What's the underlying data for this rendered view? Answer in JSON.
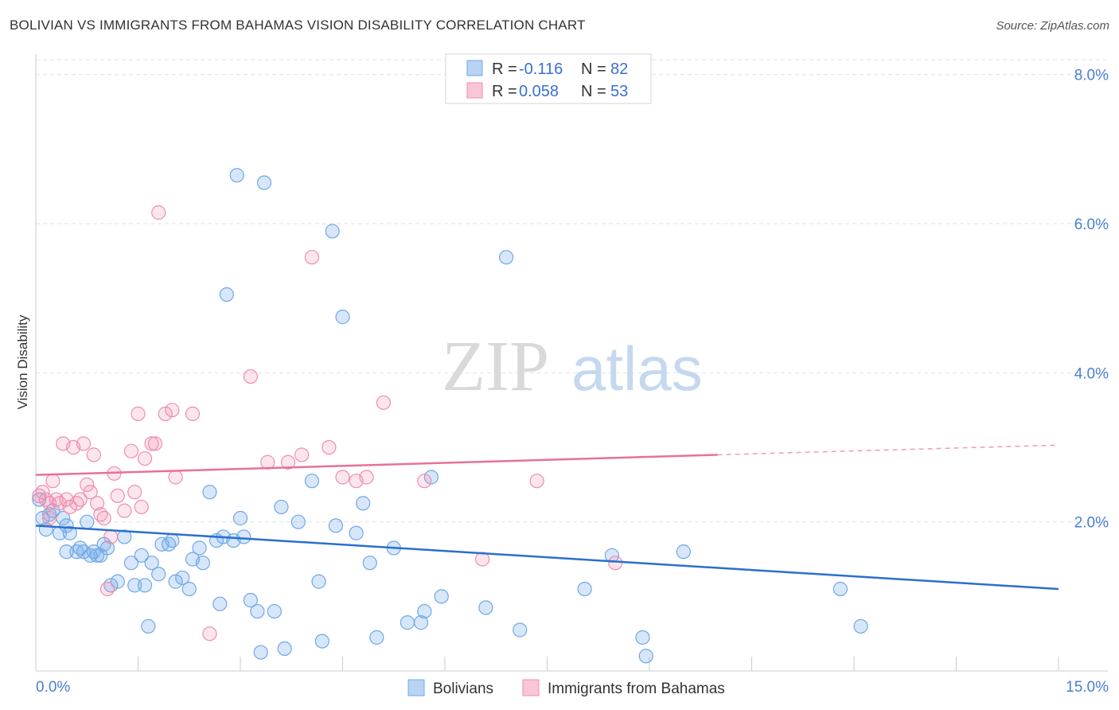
{
  "title": "BOLIVIAN VS IMMIGRANTS FROM BAHAMAS VISION DISABILITY CORRELATION CHART",
  "source": "Source: ZipAtlas.com",
  "watermark": {
    "zip": "ZIP",
    "atlas": "atlas"
  },
  "legend_top": [
    {
      "r_label": "R =",
      "r_value": "-0.116",
      "n_label": "N =",
      "n_value": "82"
    },
    {
      "r_label": "R =",
      "r_value": "0.058",
      "n_label": "N =",
      "n_value": "53"
    }
  ],
  "chart_data": {
    "type": "scatter",
    "ylabel": "Vision Disability",
    "xlabel": "",
    "xlim": [
      0,
      15
    ],
    "ylim": [
      0,
      8.2
    ],
    "x_tick_labels": [
      "0.0%",
      "15.0%"
    ],
    "y_ticks": [
      2,
      4,
      6,
      8
    ],
    "y_tick_labels": [
      "2.0%",
      "4.0%",
      "6.0%",
      "8.0%"
    ],
    "grid": true,
    "colors": {
      "Bolivians": "#6fa8e8",
      "Immigrants from Bahamas": "#f08cae"
    },
    "line_colors": {
      "Bolivians": "#2a6fd0",
      "Immigrants from Bahamas": "#e8709a"
    },
    "series": [
      {
        "name": "Bolivians",
        "trend": {
          "x": [
            0,
            15
          ],
          "y": [
            1.95,
            1.1
          ]
        },
        "points": [
          [
            0.05,
            2.3
          ],
          [
            0.1,
            2.05
          ],
          [
            0.15,
            1.9
          ],
          [
            0.2,
            2.1
          ],
          [
            0.25,
            2.15
          ],
          [
            0.35,
            1.85
          ],
          [
            0.4,
            2.05
          ],
          [
            0.45,
            1.95
          ],
          [
            0.5,
            1.85
          ],
          [
            0.6,
            1.6
          ],
          [
            0.65,
            1.65
          ],
          [
            0.7,
            1.6
          ],
          [
            0.75,
            2.0
          ],
          [
            0.8,
            1.55
          ],
          [
            0.85,
            1.6
          ],
          [
            0.9,
            1.55
          ],
          [
            0.95,
            1.55
          ],
          [
            1.0,
            1.7
          ],
          [
            1.05,
            1.65
          ],
          [
            1.1,
            1.15
          ],
          [
            1.2,
            1.2
          ],
          [
            1.3,
            1.8
          ],
          [
            1.4,
            1.45
          ],
          [
            1.45,
            1.15
          ],
          [
            1.55,
            1.55
          ],
          [
            1.6,
            1.15
          ],
          [
            1.65,
            0.6
          ],
          [
            1.7,
            1.45
          ],
          [
            1.8,
            1.3
          ],
          [
            1.85,
            1.7
          ],
          [
            1.95,
            1.7
          ],
          [
            2.0,
            1.75
          ],
          [
            2.05,
            1.2
          ],
          [
            2.15,
            1.25
          ],
          [
            2.25,
            1.1
          ],
          [
            2.3,
            1.5
          ],
          [
            2.4,
            1.65
          ],
          [
            2.45,
            1.45
          ],
          [
            2.55,
            2.4
          ],
          [
            2.65,
            1.75
          ],
          [
            2.7,
            0.9
          ],
          [
            2.75,
            1.8
          ],
          [
            2.8,
            5.05
          ],
          [
            2.9,
            1.75
          ],
          [
            2.95,
            6.65
          ],
          [
            3.0,
            2.05
          ],
          [
            3.05,
            1.8
          ],
          [
            3.15,
            0.95
          ],
          [
            3.25,
            0.8
          ],
          [
            3.3,
            0.25
          ],
          [
            3.35,
            6.55
          ],
          [
            3.5,
            0.8
          ],
          [
            3.6,
            2.2
          ],
          [
            3.65,
            0.3
          ],
          [
            3.85,
            2.0
          ],
          [
            4.05,
            2.55
          ],
          [
            4.15,
            1.2
          ],
          [
            4.2,
            0.4
          ],
          [
            4.35,
            5.9
          ],
          [
            4.4,
            1.95
          ],
          [
            4.5,
            4.75
          ],
          [
            4.7,
            1.85
          ],
          [
            4.8,
            2.25
          ],
          [
            4.9,
            1.45
          ],
          [
            5.0,
            0.45
          ],
          [
            5.25,
            1.65
          ],
          [
            5.45,
            0.65
          ],
          [
            5.65,
            0.65
          ],
          [
            5.7,
            0.8
          ],
          [
            5.8,
            2.6
          ],
          [
            5.95,
            1.0
          ],
          [
            6.6,
            0.85
          ],
          [
            6.9,
            5.55
          ],
          [
            7.1,
            0.55
          ],
          [
            8.05,
            1.1
          ],
          [
            8.45,
            1.55
          ],
          [
            8.9,
            0.45
          ],
          [
            8.95,
            0.2
          ],
          [
            9.5,
            1.6
          ],
          [
            11.8,
            1.1
          ],
          [
            12.1,
            0.6
          ],
          [
            0.45,
            1.6
          ]
        ]
      },
      {
        "name": "Immigrants from Bahamas",
        "trend": {
          "x": [
            0,
            10
          ],
          "y": [
            2.63,
            2.9
          ]
        },
        "trend_dashed": {
          "x": [
            10,
            15
          ],
          "y": [
            2.9,
            3.03
          ]
        },
        "points": [
          [
            0.05,
            2.35
          ],
          [
            0.1,
            2.4
          ],
          [
            0.15,
            2.3
          ],
          [
            0.2,
            2.25
          ],
          [
            0.25,
            2.55
          ],
          [
            0.3,
            2.3
          ],
          [
            0.35,
            2.25
          ],
          [
            0.4,
            3.05
          ],
          [
            0.45,
            2.3
          ],
          [
            0.5,
            2.2
          ],
          [
            0.55,
            3.0
          ],
          [
            0.6,
            2.25
          ],
          [
            0.65,
            2.3
          ],
          [
            0.7,
            3.05
          ],
          [
            0.75,
            2.5
          ],
          [
            0.8,
            2.4
          ],
          [
            0.85,
            2.9
          ],
          [
            0.9,
            2.25
          ],
          [
            0.95,
            2.1
          ],
          [
            1.0,
            2.05
          ],
          [
            1.05,
            1.1
          ],
          [
            1.1,
            1.8
          ],
          [
            1.15,
            2.65
          ],
          [
            1.2,
            2.35
          ],
          [
            1.3,
            2.15
          ],
          [
            1.4,
            2.95
          ],
          [
            1.45,
            2.4
          ],
          [
            1.5,
            3.45
          ],
          [
            1.55,
            2.2
          ],
          [
            1.6,
            2.85
          ],
          [
            1.7,
            3.05
          ],
          [
            1.75,
            3.05
          ],
          [
            1.8,
            6.15
          ],
          [
            1.9,
            3.45
          ],
          [
            2.0,
            3.5
          ],
          [
            2.05,
            2.6
          ],
          [
            2.3,
            3.45
          ],
          [
            2.55,
            0.5
          ],
          [
            3.15,
            3.95
          ],
          [
            3.4,
            2.8
          ],
          [
            3.7,
            2.8
          ],
          [
            3.9,
            2.9
          ],
          [
            4.05,
            5.55
          ],
          [
            4.3,
            3.0
          ],
          [
            4.5,
            2.6
          ],
          [
            4.7,
            2.55
          ],
          [
            4.85,
            2.6
          ],
          [
            5.1,
            3.6
          ],
          [
            5.7,
            2.55
          ],
          [
            6.55,
            1.5
          ],
          [
            7.35,
            2.55
          ],
          [
            8.5,
            1.45
          ],
          [
            0.2,
            2.05
          ]
        ]
      }
    ]
  }
}
